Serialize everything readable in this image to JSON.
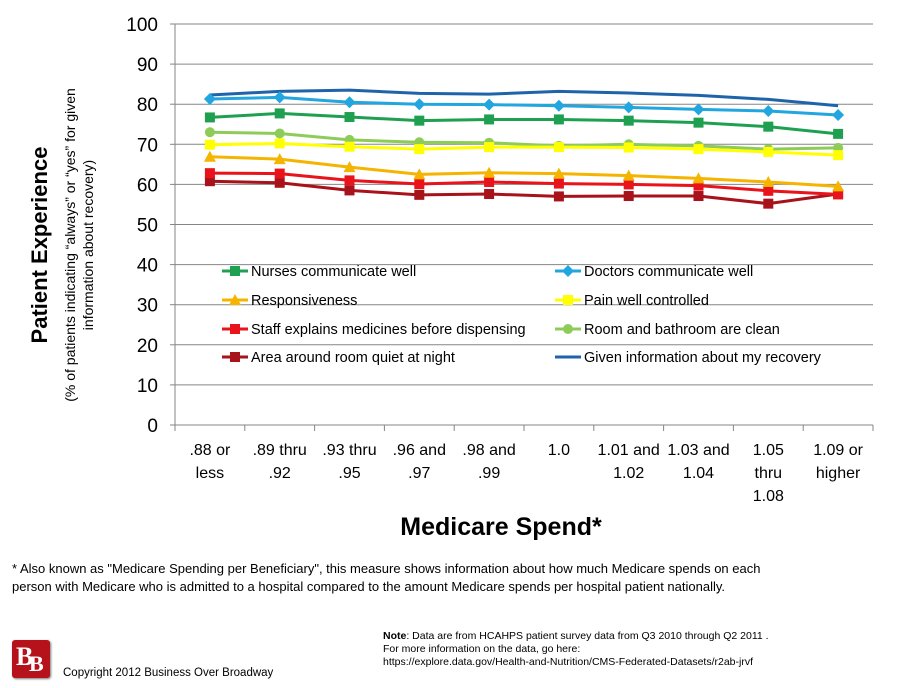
{
  "chart_data": {
    "type": "line",
    "ylim": [
      0,
      100
    ],
    "yticks": [
      0,
      10,
      20,
      30,
      40,
      50,
      60,
      70,
      80,
      90,
      100
    ],
    "ylabel": "Patient Experience",
    "ylabel_sub": [
      "(% of patients indicating “always” or “yes” for given",
      "information about recovery)"
    ],
    "xlabel": "Medicare Spend*",
    "grid": true,
    "legend_position": "inside-bottom",
    "categories": [
      [
        ".88 or",
        "less"
      ],
      [
        ".89 thru",
        ".92"
      ],
      [
        ".93 thru",
        ".95"
      ],
      [
        ".96 and",
        ".97"
      ],
      [
        ".98 and",
        ".99"
      ],
      [
        "1.0"
      ],
      [
        "1.01 and",
        "1.02"
      ],
      [
        "1.03 and",
        "1.04"
      ],
      [
        "1.05",
        "thru",
        "1.08"
      ],
      [
        "1.09 or",
        "higher"
      ]
    ],
    "series": [
      {
        "name": "Nurses communicate well",
        "color": "#1ea050",
        "marker": "square",
        "values": [
          76.7,
          77.7,
          76.8,
          75.9,
          76.2,
          76.2,
          75.9,
          75.4,
          74.4,
          72.6
        ]
      },
      {
        "name": "Doctors communicate well",
        "color": "#22a6e0",
        "marker": "diamond",
        "values": [
          81.3,
          81.7,
          80.5,
          80.0,
          79.9,
          79.6,
          79.2,
          78.7,
          78.3,
          77.3
        ]
      },
      {
        "name": "Responsiveness",
        "color": "#f5b400",
        "marker": "triangle",
        "values": [
          66.9,
          66.3,
          64.3,
          62.5,
          62.9,
          62.7,
          62.2,
          61.5,
          60.6,
          59.5
        ]
      },
      {
        "name": "Pain well controlled",
        "color": "#ffff00",
        "marker": "square",
        "values": [
          69.9,
          70.2,
          69.4,
          68.8,
          69.3,
          69.3,
          69.2,
          68.8,
          68.1,
          67.3
        ]
      },
      {
        "name": "Staff explains medicines before dispensing",
        "color": "#e8131b",
        "marker": "square",
        "values": [
          62.8,
          62.7,
          61.0,
          60.1,
          60.6,
          60.2,
          60.0,
          59.7,
          58.4,
          57.5
        ]
      },
      {
        "name": "Room and bathroom are clean",
        "color": "#8ecc5a",
        "marker": "circle",
        "values": [
          73.0,
          72.7,
          71.1,
          70.5,
          70.4,
          69.6,
          70.0,
          69.6,
          68.8,
          69.1
        ]
      },
      {
        "name": "Area around room quiet at night",
        "color": "#a8121a",
        "marker": "square",
        "values": [
          60.8,
          60.4,
          58.5,
          57.4,
          57.6,
          57.0,
          57.1,
          57.1,
          55.2,
          57.6
        ]
      },
      {
        "name": "Given information about my recovery",
        "color": "#1f64aa",
        "marker": "none",
        "values": [
          82.3,
          83.2,
          83.5,
          82.7,
          82.5,
          83.2,
          82.8,
          82.2,
          81.2,
          79.6
        ]
      }
    ]
  },
  "footnote": {
    "line1": "* Also known as \"Medicare Spending per Beneficiary\", this measure shows information about how much Medicare spends on each",
    "line2": "person with Medicare who is admitted to a hospital compared to the amount Medicare spends per hospital patient nationally."
  },
  "note": {
    "label": "Note",
    "line1": ": Data are from HCAHPS patient survey data from Q3 2010 through Q2 2011 .",
    "line2": " For more information on the data, go here:",
    "line3": "https://explore.data.gov/Health-and-Nutrition/CMS-Federated-Datasets/r2ab-jrvf"
  },
  "logo": {
    "letter1": "B",
    "letter2": "B",
    "color": "#b5121b"
  },
  "copyright": "Copyright 2012 Business Over Broadway"
}
